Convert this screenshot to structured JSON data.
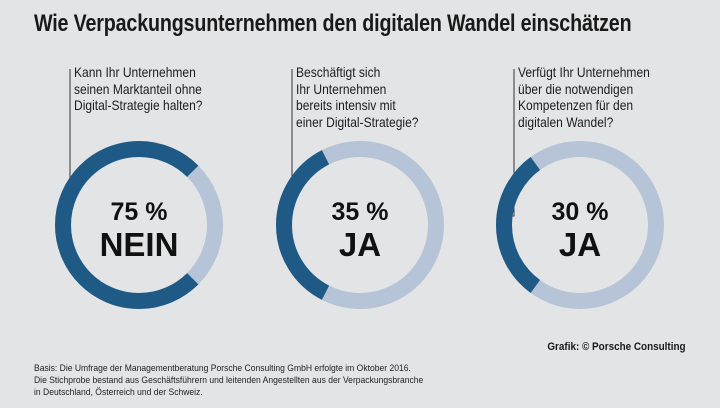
{
  "title": "Wie Verpackungsunternehmen den digitalen Wandel einschätzen",
  "colors": {
    "dark": "#1f5a86",
    "light": "#b5c4d6",
    "background": "#e3e4e5"
  },
  "chart_data": [
    {
      "type": "pie",
      "question_lines": [
        "Kann Ihr Unternehmen",
        "seinen Marktanteil ohne",
        "Digital-Strategie halten?"
      ],
      "highlight_percent": 75,
      "percent_label": "75 %",
      "answer_label": "NEIN",
      "segments": [
        {
          "name": "NEIN",
          "value": 75
        },
        {
          "name": "other",
          "value": 25
        }
      ]
    },
    {
      "type": "pie",
      "question_lines": [
        "Beschäftigt sich",
        "Ihr Unternehmen",
        "bereits intensiv mit",
        "einer Digital-Strategie?"
      ],
      "highlight_percent": 35,
      "percent_label": "35 %",
      "answer_label": "JA",
      "segments": [
        {
          "name": "JA",
          "value": 35
        },
        {
          "name": "other",
          "value": 65
        }
      ]
    },
    {
      "type": "pie",
      "question_lines": [
        "Verfügt Ihr Unternehmen",
        "über die notwendigen",
        "Kompetenzen für den",
        "digitalen Wandel?"
      ],
      "highlight_percent": 30,
      "percent_label": "30 %",
      "answer_label": "JA",
      "segments": [
        {
          "name": "JA",
          "value": 30
        },
        {
          "name": "other",
          "value": 70
        }
      ]
    }
  ],
  "credit": "Grafik: © Porsche Consulting",
  "footnote_lines": [
    "Basis: Die Umfrage der Managementberatung Porsche Consulting GmbH erfolgte im Oktober 2016.",
    "Die Stichprobe bestand aus Geschäftsführern und leitenden Angestellten aus der Verpackungsbranche",
    "in Deutschland, Österreich und der Schweiz."
  ]
}
